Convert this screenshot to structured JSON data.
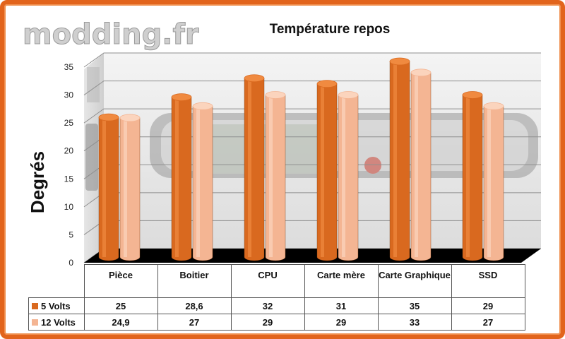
{
  "watermark": "modding.fr",
  "chart_data": {
    "type": "bar",
    "title": "Température repos",
    "ylabel": "Degrés",
    "xlabel": "",
    "ylim": [
      0,
      35
    ],
    "yticks": [
      0,
      5,
      10,
      15,
      20,
      25,
      30,
      35
    ],
    "grid": true,
    "legend": "data-table",
    "categories": [
      "Pièce",
      "Boitier",
      "CPU",
      "Carte mère",
      "Carte Graphique",
      "SSD"
    ],
    "series": [
      {
        "name": "5 Volts",
        "values": [
          25,
          28.6,
          32,
          31,
          35,
          29
        ],
        "labels": [
          "25",
          "28,6",
          "32",
          "31",
          "35",
          "29"
        ],
        "color": "#d9691f",
        "light": "#f08a40"
      },
      {
        "name": "12 Volts",
        "values": [
          24.9,
          27,
          29,
          29,
          33,
          27
        ],
        "labels": [
          "24,9",
          "27",
          "29",
          "29",
          "33",
          "27"
        ],
        "color": "#f4b593",
        "light": "#fbd4bd"
      }
    ]
  }
}
